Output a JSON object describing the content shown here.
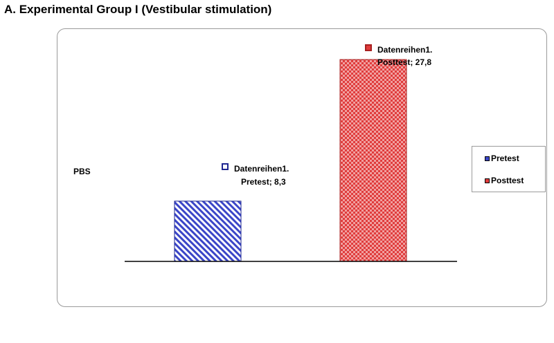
{
  "page": {
    "title": "A. Experimental Group I (Vestibular stimulation)"
  },
  "chart_data": {
    "type": "bar",
    "title": "A. Experimental Group I (Vestibular stimulation)",
    "ylabel": "PBS",
    "xlabel": "",
    "ylim": [
      0,
      30
    ],
    "grid": false,
    "legend_position": "right",
    "series": [
      {
        "name": "Pretest",
        "value": 8.3,
        "color": "#3b46c8",
        "pattern": "diagonal-stripes",
        "data_label": [
          "Datenreihen1.",
          "Pretest; 8,3"
        ]
      },
      {
        "name": "Posttest",
        "value": 27.8,
        "color": "#e03c3c",
        "pattern": "checkered",
        "data_label": [
          "Datenreihen1.",
          "Posttest; 27,8"
        ]
      }
    ],
    "legend": [
      "Pretest",
      "Posttest"
    ]
  }
}
